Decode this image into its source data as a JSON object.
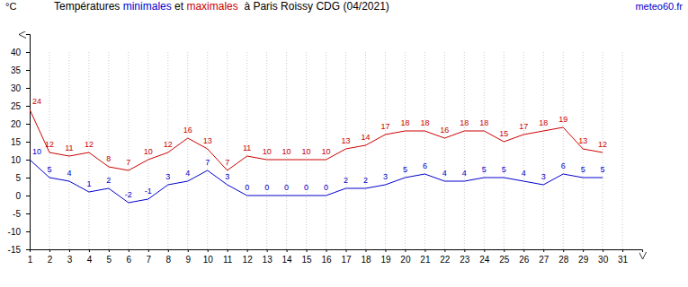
{
  "chart_data": {
    "type": "line",
    "title": "Températures minimales et maximales  à Paris Roissy CDG (04/2021)",
    "source": "meteo60.fr",
    "y_label": "°C",
    "x": [
      1,
      2,
      3,
      4,
      5,
      6,
      7,
      8,
      9,
      10,
      11,
      12,
      13,
      14,
      15,
      16,
      17,
      18,
      19,
      20,
      21,
      22,
      23,
      24,
      25,
      26,
      27,
      28,
      29,
      30
    ],
    "series": [
      {
        "name": "maximales",
        "color": "#cc0000",
        "values": [
          24,
          12,
          11,
          12,
          8,
          7,
          10,
          12,
          16,
          13,
          7,
          11,
          10,
          10,
          10,
          10,
          13,
          14,
          17,
          18,
          18,
          16,
          18,
          18,
          15,
          17,
          18,
          19,
          13,
          12
        ]
      },
      {
        "name": "minimales",
        "color": "#0000cc",
        "values": [
          10,
          5,
          4,
          1,
          2,
          -2,
          -1,
          3,
          4,
          7,
          3,
          0,
          0,
          0,
          0,
          0,
          2,
          2,
          3,
          5,
          6,
          4,
          4,
          5,
          5,
          4,
          3,
          6,
          5,
          5
        ]
      }
    ],
    "xlim": [
      1,
      32
    ],
    "xticks": [
      1,
      2,
      3,
      4,
      5,
      6,
      7,
      8,
      9,
      10,
      11,
      12,
      13,
      14,
      15,
      16,
      17,
      18,
      19,
      20,
      21,
      22,
      23,
      24,
      25,
      26,
      27,
      28,
      29,
      30,
      31
    ],
    "ylim": [
      -15,
      45
    ],
    "yticks": [
      -15,
      -10,
      -5,
      0,
      5,
      10,
      15,
      20,
      25,
      30,
      35,
      40
    ],
    "grid": true,
    "data_labels": true
  }
}
